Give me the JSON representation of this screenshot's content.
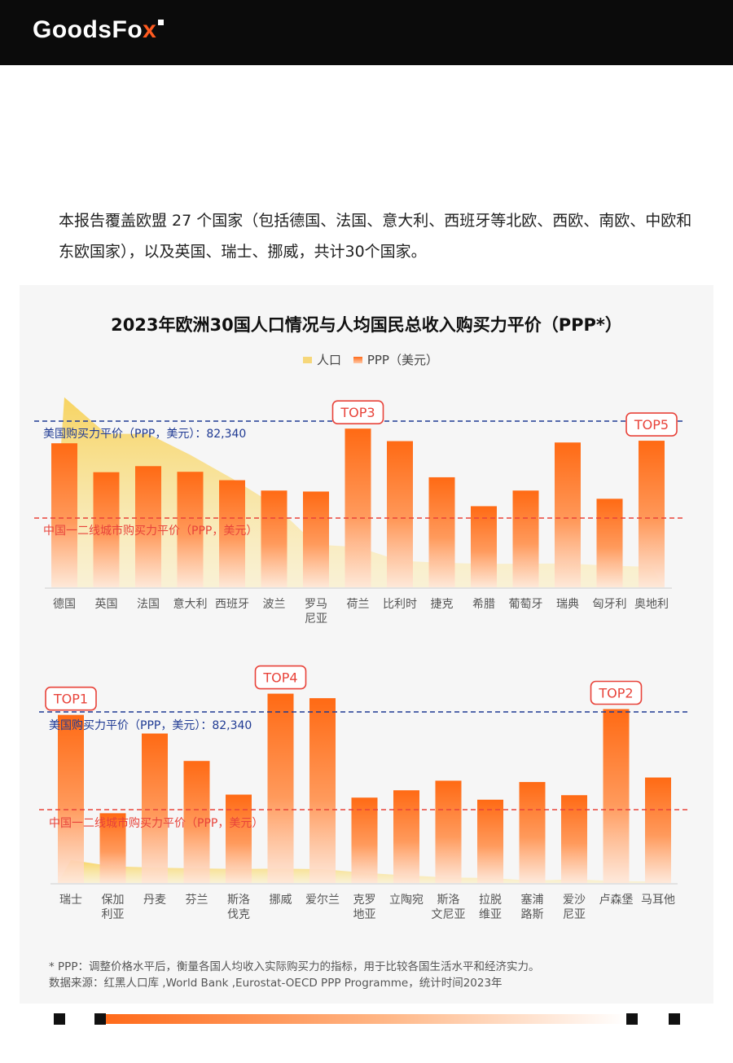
{
  "brand": {
    "logo_main": "GoodsFo",
    "logo_x": "x"
  },
  "intro": {
    "text": "本报告覆盖欧盟 27 个国家（包括德国、法国、意大利、西班牙等北欧、西欧、南欧、中欧和东欧国家），以及英国、瑞士、挪威，共计30个国家。"
  },
  "colors": {
    "accent": "#ff6a1a",
    "population": "#f6d77a",
    "us_line": "#1f3a93",
    "china_line": "#e8433a",
    "top_label": "#e8433a"
  },
  "chart_data": {
    "type": "bar",
    "title": "2023年欧洲30国人口情况与人均国民总收入购买力平价（PPP*）",
    "legend": [
      "人口",
      "PPP（美元）"
    ],
    "reference_lines": {
      "us": {
        "label": "美国购买力平价（PPP，美元）：82,340",
        "value": 82340
      },
      "china": {
        "label": "中国一二线城市购买力平价（PPP，美元）"
      }
    },
    "panels": [
      {
        "categories": [
          "德国",
          "英国",
          "法国",
          "意大利",
          "西班牙",
          "波兰",
          "罗马\n尼亚",
          "荷兰",
          "比利时",
          "捷克",
          "希腊",
          "葡萄牙",
          "瑞典",
          "匈牙利",
          "奥地利"
        ],
        "ppp": [
          73700,
          58900,
          62000,
          59100,
          54800,
          49500,
          49000,
          81200,
          74800,
          56300,
          41500,
          49500,
          74100,
          45300,
          75000
        ],
        "population": [
          84.5,
          68.3,
          68.2,
          58.9,
          48.4,
          36.8,
          19.0,
          17.9,
          11.8,
          10.9,
          10.4,
          10.5,
          10.6,
          9.6,
          9.1
        ],
        "top_labels": {
          "7": "TOP3",
          "14": "TOP5"
        }
      },
      {
        "categories": [
          "瑞士",
          "保加\n利亚",
          "丹麦",
          "芬兰",
          "斯洛\n伐克",
          "挪威",
          "爱尔兰",
          "克罗\n地亚",
          "立陶宛",
          "斯洛\n文尼亚",
          "拉脱\n维亚",
          "塞浦\n路斯",
          "爱沙\n尼亚",
          "卢森堡",
          "马耳他"
        ],
        "ppp": [
          89400,
          37100,
          79500,
          64900,
          47000,
          100700,
          98300,
          45400,
          49300,
          54400,
          44300,
          53700,
          46700,
          92500,
          56100
        ],
        "population": [
          8.8,
          6.4,
          5.9,
          5.6,
          5.4,
          5.5,
          5.3,
          3.9,
          2.9,
          2.1,
          1.9,
          0.9,
          1.4,
          0.7,
          0.6
        ],
        "top_labels": {
          "0": "TOP1",
          "5": "TOP4",
          "13": "TOP2"
        }
      }
    ]
  },
  "notes": {
    "ppp_note": "* PPP：调整价格水平后，衡量各国人均收入实际购买力的指标，用于比较各国生活水平和经济实力。",
    "source": "数据来源：红黑人口库 ,World Bank ,Eurostat-OECD PPP Programme，统计时间2023年"
  }
}
